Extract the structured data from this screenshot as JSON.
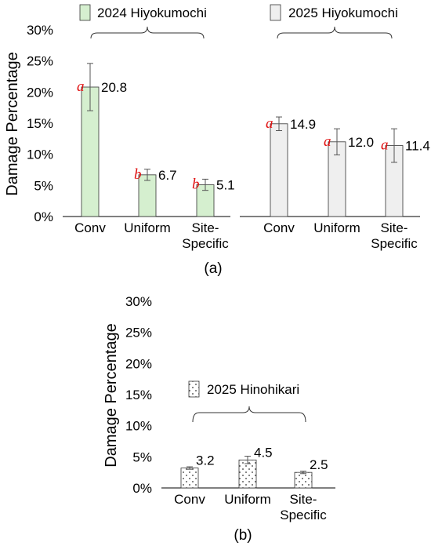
{
  "chart_data": [
    {
      "type": "bar",
      "panel": "a",
      "ylabel": "Damage Percentage",
      "ylim": [
        0,
        30
      ],
      "yticks": [
        "0%",
        "5%",
        "10%",
        "15%",
        "20%",
        "25%",
        "30%"
      ],
      "categories": [
        "Conv",
        "Uniform",
        "Site-Specific"
      ],
      "series": [
        {
          "name": "2024 Hiyokumochi",
          "color": "#d5efcf",
          "values": [
            20.8,
            6.7,
            5.1
          ],
          "value_labels": [
            "20.8",
            "6.7",
            "5.1"
          ],
          "errors": [
            3.8,
            0.9,
            0.9
          ],
          "significance": [
            "a",
            "b",
            "b"
          ]
        },
        {
          "name": "2025 Hiyokumochi",
          "color": "#efefef",
          "values": [
            14.9,
            12.0,
            11.4
          ],
          "value_labels": [
            "14.9",
            "12.0",
            "11.4"
          ],
          "errors": [
            1.1,
            2.1,
            2.7
          ],
          "significance": [
            "a",
            "a",
            "a"
          ]
        }
      ],
      "caption": "(a)"
    },
    {
      "type": "bar",
      "panel": "b",
      "ylabel": "Damage Percentage",
      "ylim": [
        0,
        30
      ],
      "yticks": [
        "0%",
        "5%",
        "10%",
        "15%",
        "20%",
        "25%",
        "30%"
      ],
      "categories": [
        "Conv",
        "Uniform",
        "Site-Specific"
      ],
      "series": [
        {
          "name": "2025 Hinohikari",
          "color": "#ffffff",
          "pattern": "dots",
          "values": [
            3.2,
            4.5,
            2.5
          ],
          "value_labels": [
            "3.2",
            "4.5",
            "2.5"
          ],
          "errors": [
            0.2,
            0.6,
            0.2
          ]
        }
      ],
      "caption": "(b)"
    }
  ]
}
